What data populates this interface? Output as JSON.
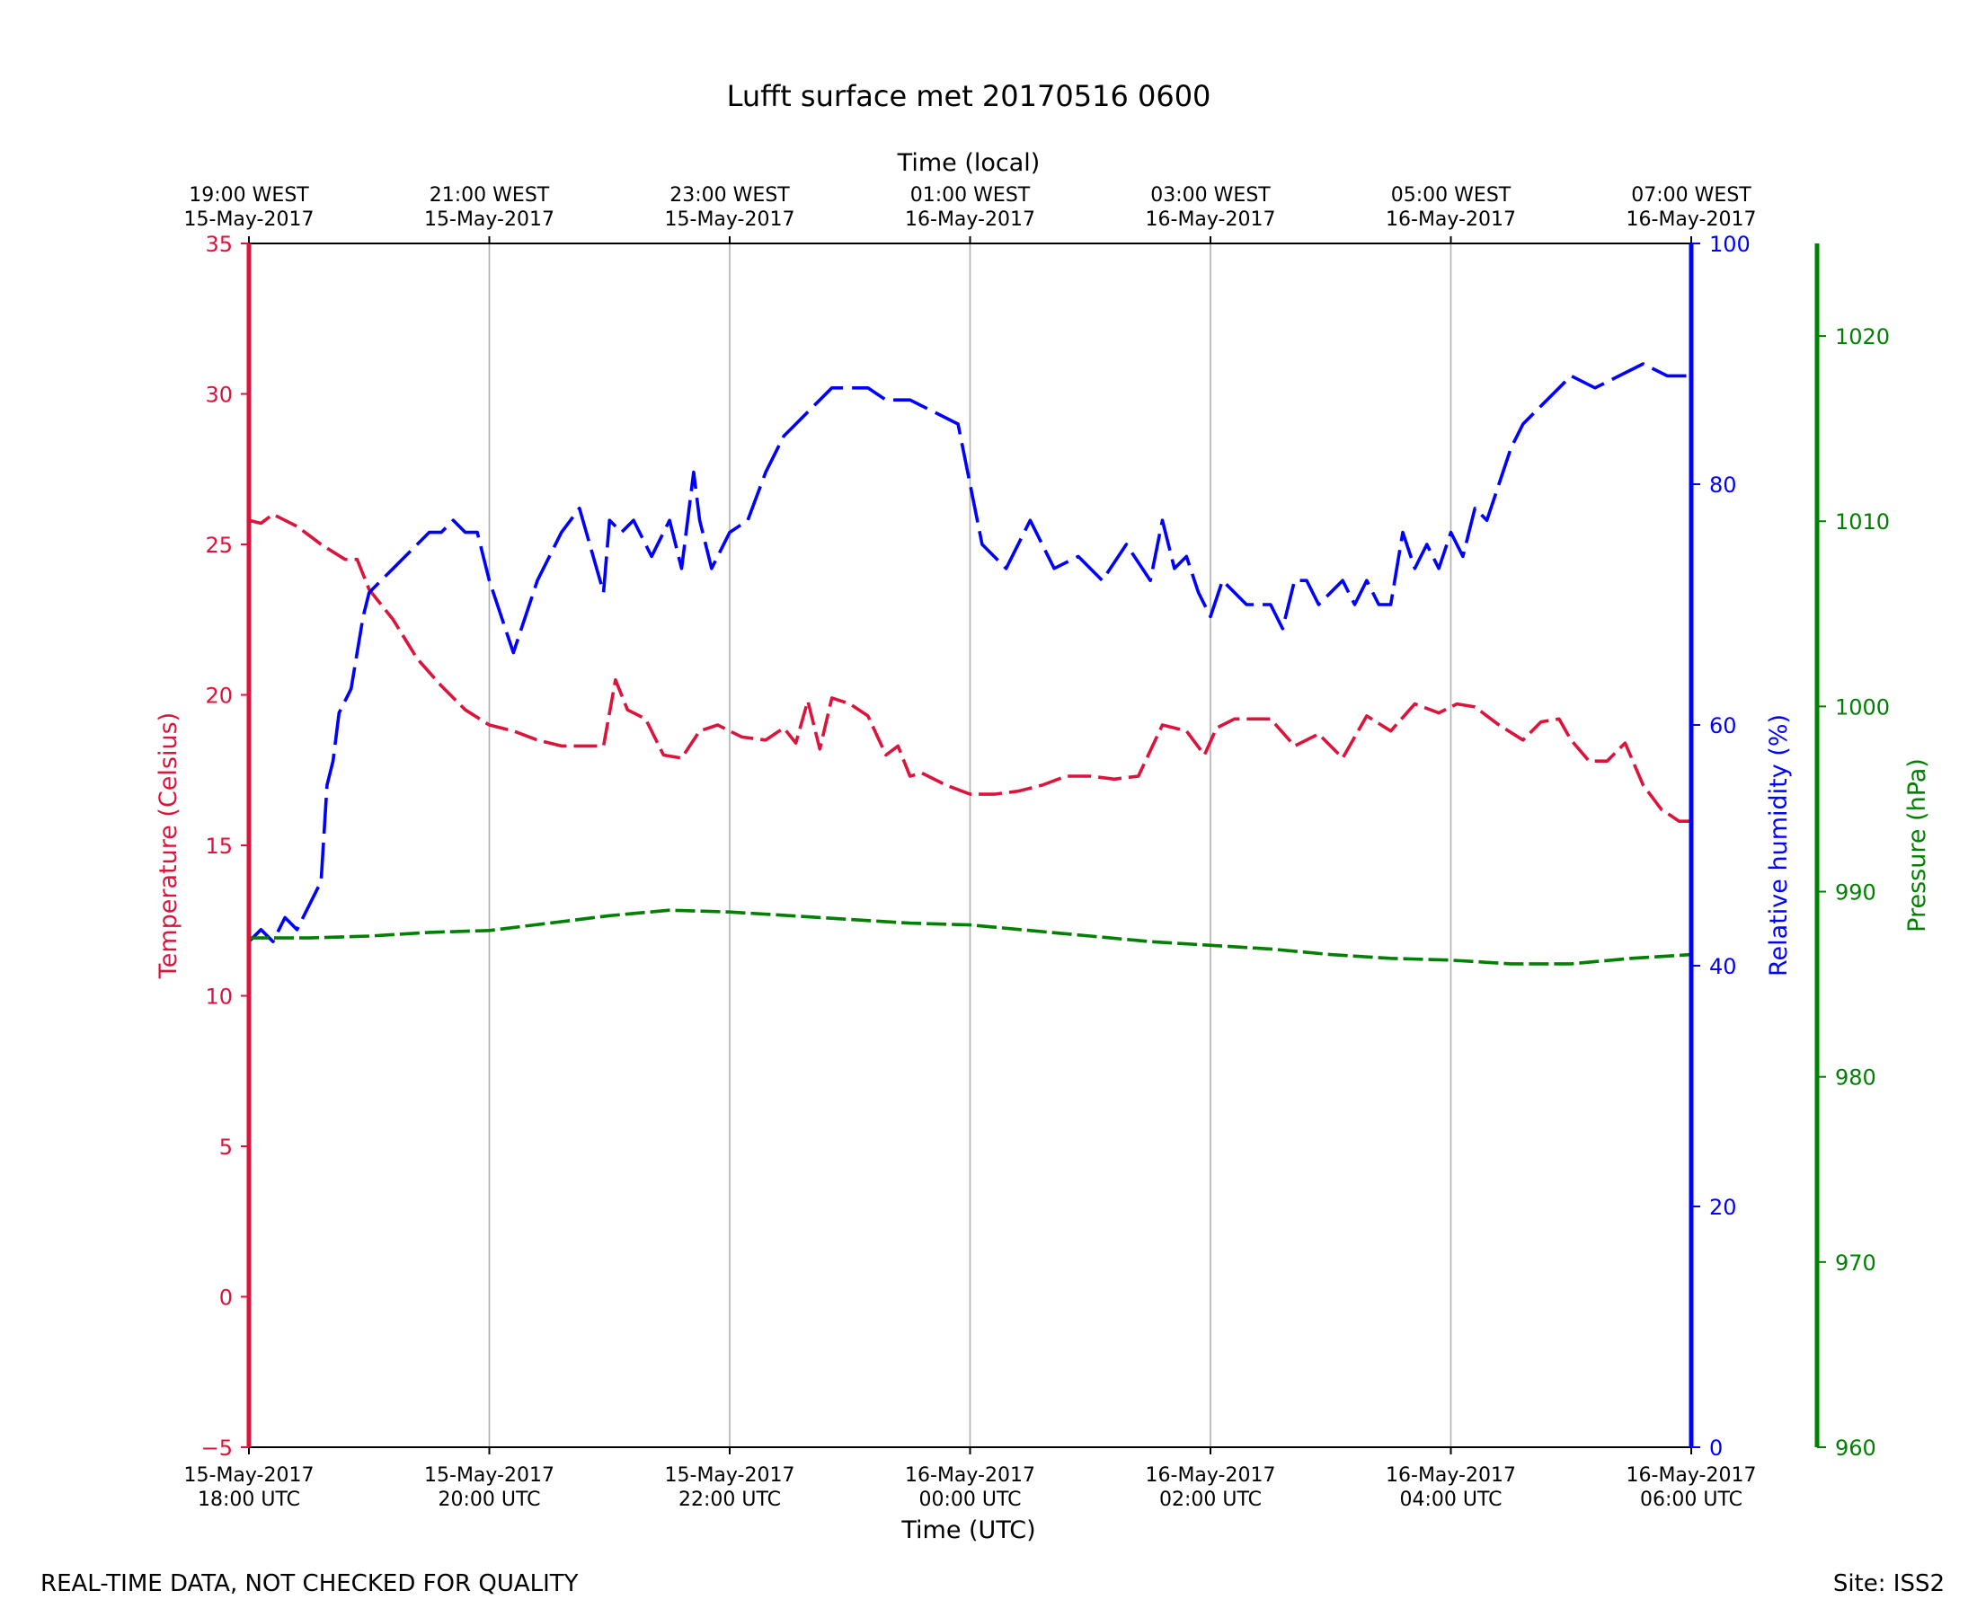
{
  "chart_data": {
    "type": "line",
    "title": "Lufft surface met 20170516 0600",
    "xlabel": "Time (UTC)",
    "xlabel_top": "Time (local)",
    "x_hours": [
      0,
      2,
      4,
      6,
      8,
      10,
      12
    ],
    "x_ticks_bottom": [
      [
        "15-May-2017",
        "18:00 UTC"
      ],
      [
        "15-May-2017",
        "20:00 UTC"
      ],
      [
        "15-May-2017",
        "22:00 UTC"
      ],
      [
        "16-May-2017",
        "00:00 UTC"
      ],
      [
        "16-May-2017",
        "02:00 UTC"
      ],
      [
        "16-May-2017",
        "04:00 UTC"
      ],
      [
        "16-May-2017",
        "06:00 UTC"
      ]
    ],
    "x_ticks_top": [
      [
        "19:00 WEST",
        "15-May-2017"
      ],
      [
        "21:00 WEST",
        "15-May-2017"
      ],
      [
        "23:00 WEST",
        "15-May-2017"
      ],
      [
        "01:00 WEST",
        "16-May-2017"
      ],
      [
        "03:00 WEST",
        "16-May-2017"
      ],
      [
        "05:00 WEST",
        "16-May-2017"
      ],
      [
        "07:00 WEST",
        "16-May-2017"
      ]
    ],
    "grid": true,
    "axes": {
      "temperature": {
        "label": "Temperature (Celsius)",
        "ylim": [
          -5,
          35
        ],
        "ticks": [
          -5,
          0,
          5,
          10,
          15,
          20,
          25,
          30,
          35
        ],
        "tick_labels": [
          "−5",
          "0",
          "5",
          "10",
          "15",
          "20",
          "25",
          "30",
          "35"
        ],
        "color": "#dc143c"
      },
      "humidity": {
        "label": "Relative humidity (%)",
        "ylim": [
          0,
          100
        ],
        "ticks": [
          0,
          20,
          40,
          60,
          80,
          100
        ],
        "tick_labels": [
          "0",
          "20",
          "40",
          "60",
          "80",
          "100"
        ],
        "color": "#0000ff"
      },
      "pressure": {
        "label": "Pressure (hPa)",
        "ylim": [
          960,
          1025
        ],
        "ticks": [
          960,
          970,
          980,
          990,
          1000,
          1010,
          1020
        ],
        "tick_labels": [
          "960",
          "970",
          "980",
          "990",
          "1000",
          "1010",
          "1020"
        ],
        "color": "#008000"
      }
    },
    "series": [
      {
        "name": "Temperature",
        "axis": "temperature",
        "color": "#dc143c",
        "x": [
          0,
          0.1,
          0.2,
          0.4,
          0.6,
          0.8,
          0.9,
          1.0,
          1.1,
          1.2,
          1.4,
          1.6,
          1.8,
          2.0,
          2.2,
          2.4,
          2.6,
          2.8,
          2.95,
          3.05,
          3.15,
          3.3,
          3.45,
          3.6,
          3.75,
          3.9,
          4.1,
          4.3,
          4.45,
          4.55,
          4.65,
          4.75,
          4.85,
          5.0,
          5.15,
          5.3,
          5.4,
          5.5,
          5.6,
          5.8,
          6.0,
          6.2,
          6.4,
          6.6,
          6.8,
          7.0,
          7.2,
          7.4,
          7.6,
          7.8,
          7.95,
          8.05,
          8.2,
          8.35,
          8.5,
          8.7,
          8.9,
          9.1,
          9.3,
          9.5,
          9.7,
          9.9,
          10.05,
          10.2,
          10.4,
          10.6,
          10.75,
          10.9,
          11.0,
          11.15,
          11.3,
          11.45,
          11.6,
          11.75,
          11.9,
          12.0
        ],
        "y": [
          25.8,
          25.7,
          26.0,
          25.6,
          25.0,
          24.5,
          24.5,
          23.5,
          23.0,
          22.5,
          21.2,
          20.3,
          19.5,
          19.0,
          18.8,
          18.5,
          18.3,
          18.3,
          18.3,
          20.5,
          19.5,
          19.2,
          18.0,
          17.9,
          18.8,
          19.0,
          18.6,
          18.5,
          18.9,
          18.4,
          19.8,
          18.2,
          19.9,
          19.7,
          19.3,
          18.0,
          18.3,
          17.3,
          17.4,
          17.0,
          16.7,
          16.7,
          16.8,
          17.0,
          17.3,
          17.3,
          17.2,
          17.3,
          19.0,
          18.8,
          18.0,
          18.9,
          19.2,
          19.2,
          19.2,
          18.3,
          18.7,
          17.9,
          19.3,
          18.8,
          19.7,
          19.4,
          19.7,
          19.6,
          19.0,
          18.5,
          19.1,
          19.2,
          18.5,
          17.8,
          17.8,
          18.4,
          17.0,
          16.2,
          15.8,
          15.8
        ]
      },
      {
        "name": "Relative humidity",
        "axis": "humidity",
        "color": "#0000ff",
        "x": [
          0,
          0.1,
          0.2,
          0.3,
          0.4,
          0.5,
          0.6,
          0.65,
          0.7,
          0.75,
          0.8,
          0.85,
          0.9,
          0.95,
          1.0,
          1.1,
          1.2,
          1.3,
          1.4,
          1.5,
          1.6,
          1.7,
          1.8,
          1.9,
          2.0,
          2.2,
          2.4,
          2.6,
          2.75,
          2.95,
          3.0,
          3.1,
          3.2,
          3.35,
          3.5,
          3.6,
          3.7,
          3.75,
          3.85,
          4.0,
          4.15,
          4.3,
          4.45,
          4.55,
          4.65,
          4.75,
          4.85,
          4.95,
          5.05,
          5.15,
          5.3,
          5.5,
          5.7,
          5.9,
          6.1,
          6.3,
          6.5,
          6.7,
          6.9,
          7.1,
          7.3,
          7.5,
          7.6,
          7.7,
          7.8,
          7.9,
          8.0,
          8.1,
          8.3,
          8.5,
          8.6,
          8.7,
          8.8,
          8.9,
          9.1,
          9.2,
          9.3,
          9.4,
          9.5,
          9.6,
          9.7,
          9.8,
          9.9,
          10.0,
          10.1,
          10.2,
          10.3,
          10.4,
          10.5,
          10.6,
          10.7,
          10.8,
          10.9,
          11.0,
          11.2,
          11.4,
          11.6,
          11.8,
          12.0
        ],
        "y": [
          42,
          43,
          42,
          44,
          43,
          45,
          47,
          55,
          57,
          61,
          62,
          63,
          66,
          69,
          71,
          72,
          73,
          74,
          75,
          76,
          76,
          77,
          76,
          76,
          72,
          66,
          72,
          76,
          78,
          71,
          77,
          76,
          77,
          74,
          77,
          73,
          81,
          77,
          73,
          76,
          77,
          81,
          84,
          85,
          86,
          87,
          88,
          88,
          88,
          88,
          87,
          87,
          86,
          85,
          75,
          73,
          77,
          73,
          74,
          72,
          75,
          72,
          77,
          73,
          74,
          71,
          69,
          72,
          70,
          70,
          68,
          72,
          72,
          70,
          72,
          70,
          72,
          70,
          70,
          76,
          73,
          75,
          73,
          76,
          74,
          78,
          77,
          80,
          83,
          85,
          86,
          87,
          88,
          89,
          88,
          89,
          90,
          89,
          89
        ]
      },
      {
        "name": "Pressure",
        "axis": "pressure",
        "color": "#008000",
        "x": [
          0,
          0.5,
          1.0,
          1.5,
          2.0,
          2.5,
          3.0,
          3.5,
          4.0,
          4.5,
          5.0,
          5.5,
          6.0,
          6.5,
          7.0,
          7.5,
          8.0,
          8.5,
          9.0,
          9.5,
          10.0,
          10.5,
          11.0,
          11.5,
          12.0
        ],
        "y": [
          987.5,
          987.5,
          987.6,
          987.8,
          987.9,
          988.3,
          988.7,
          989.0,
          988.9,
          988.7,
          988.5,
          988.3,
          988.2,
          987.9,
          987.6,
          987.3,
          987.1,
          986.9,
          986.6,
          986.4,
          986.3,
          986.1,
          986.1,
          986.4,
          986.6
        ]
      }
    ]
  },
  "footer": {
    "left": "REAL-TIME DATA, NOT CHECKED FOR QUALITY",
    "right": "Site: ISS2"
  }
}
